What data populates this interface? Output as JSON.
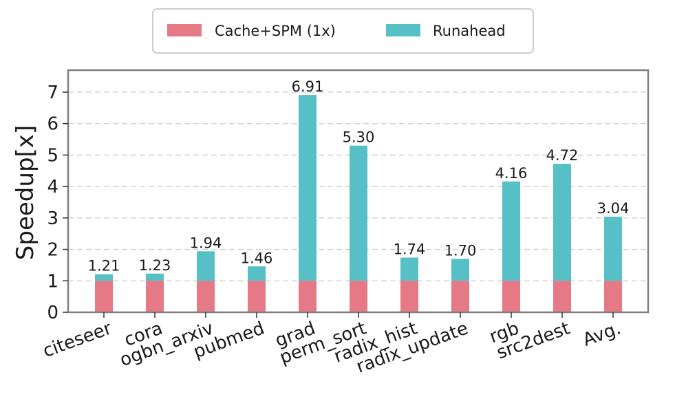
{
  "chart_data": {
    "type": "bar",
    "categories": [
      "citeseer",
      "cora",
      "ogbn_arxiv",
      "pubmed",
      "grad",
      "perm_sort",
      "radix_hist",
      "radix_update",
      "rgb",
      "src2dest",
      "Avg."
    ],
    "series": [
      {
        "name": "Cache+SPM (1x)",
        "values": [
          1,
          1,
          1,
          1,
          1,
          1,
          1,
          1,
          1,
          1,
          1
        ],
        "color": "#e57a86"
      },
      {
        "name": "Runahead",
        "values": [
          1.21,
          1.23,
          1.94,
          1.46,
          6.91,
          5.3,
          1.74,
          1.7,
          4.16,
          4.72,
          3.04
        ],
        "color": "#56c0c6"
      }
    ],
    "data_labels": [
      "1.21",
      "1.23",
      "1.94",
      "1.46",
      "6.91",
      "5.30",
      "1.74",
      "1.70",
      "4.16",
      "4.72",
      "3.04"
    ],
    "ylabel": "Speedup[x]",
    "ylim": [
      0,
      7.7
    ],
    "yticks": [
      0,
      1,
      2,
      3,
      4,
      5,
      6,
      7
    ],
    "grid": true,
    "legend_position": "top-center"
  }
}
